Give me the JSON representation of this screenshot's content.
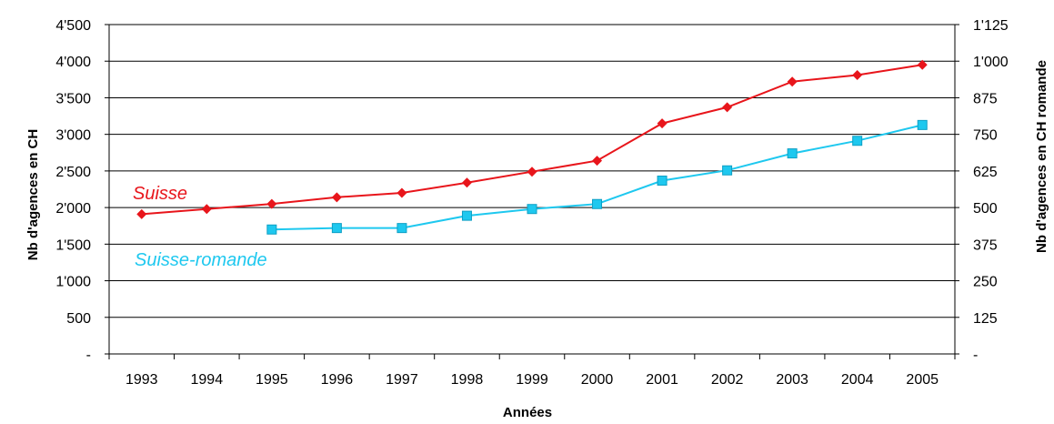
{
  "chart_data": {
    "type": "line",
    "title": "",
    "xlabel": "Années",
    "ylabel_left": "Nb d'agences en CH",
    "ylabel_right": "Nb d'agences en CH romande",
    "categories": [
      "1993",
      "1994",
      "1995",
      "1996",
      "1997",
      "1998",
      "1999",
      "2000",
      "2001",
      "2002",
      "2003",
      "2004",
      "2005"
    ],
    "left_axis": {
      "ylim": [
        0,
        4500
      ],
      "ticks": [
        0,
        500,
        1000,
        1500,
        2000,
        2500,
        3000,
        3500,
        4000,
        4500
      ],
      "tick_labels": [
        "-",
        "500",
        "1'000",
        "1'500",
        "2'000",
        "2'500",
        "3'000",
        "3'500",
        "4'000",
        "4'500"
      ]
    },
    "right_axis": {
      "ylim": [
        0,
        1125
      ],
      "ticks": [
        0,
        125,
        250,
        375,
        500,
        625,
        750,
        875,
        1000,
        1125
      ],
      "tick_labels": [
        "-",
        "125",
        "250",
        "375",
        "500",
        "625",
        "750",
        "875",
        "1'000",
        "1'125"
      ]
    },
    "grid": true,
    "series": [
      {
        "name": "Suisse",
        "axis": "left",
        "color": "#e8151b",
        "marker": "diamond",
        "values": [
          1910,
          1980,
          2050,
          2140,
          2200,
          2340,
          2490,
          2640,
          3150,
          3370,
          3720,
          3810,
          3950
        ]
      },
      {
        "name": "Suisse-romande",
        "axis": "right",
        "color": "#1ec8ef",
        "marker": "square",
        "values": [
          null,
          null,
          425,
          430,
          430,
          472,
          495,
          512,
          592,
          627,
          685,
          728,
          782
        ]
      }
    ]
  }
}
